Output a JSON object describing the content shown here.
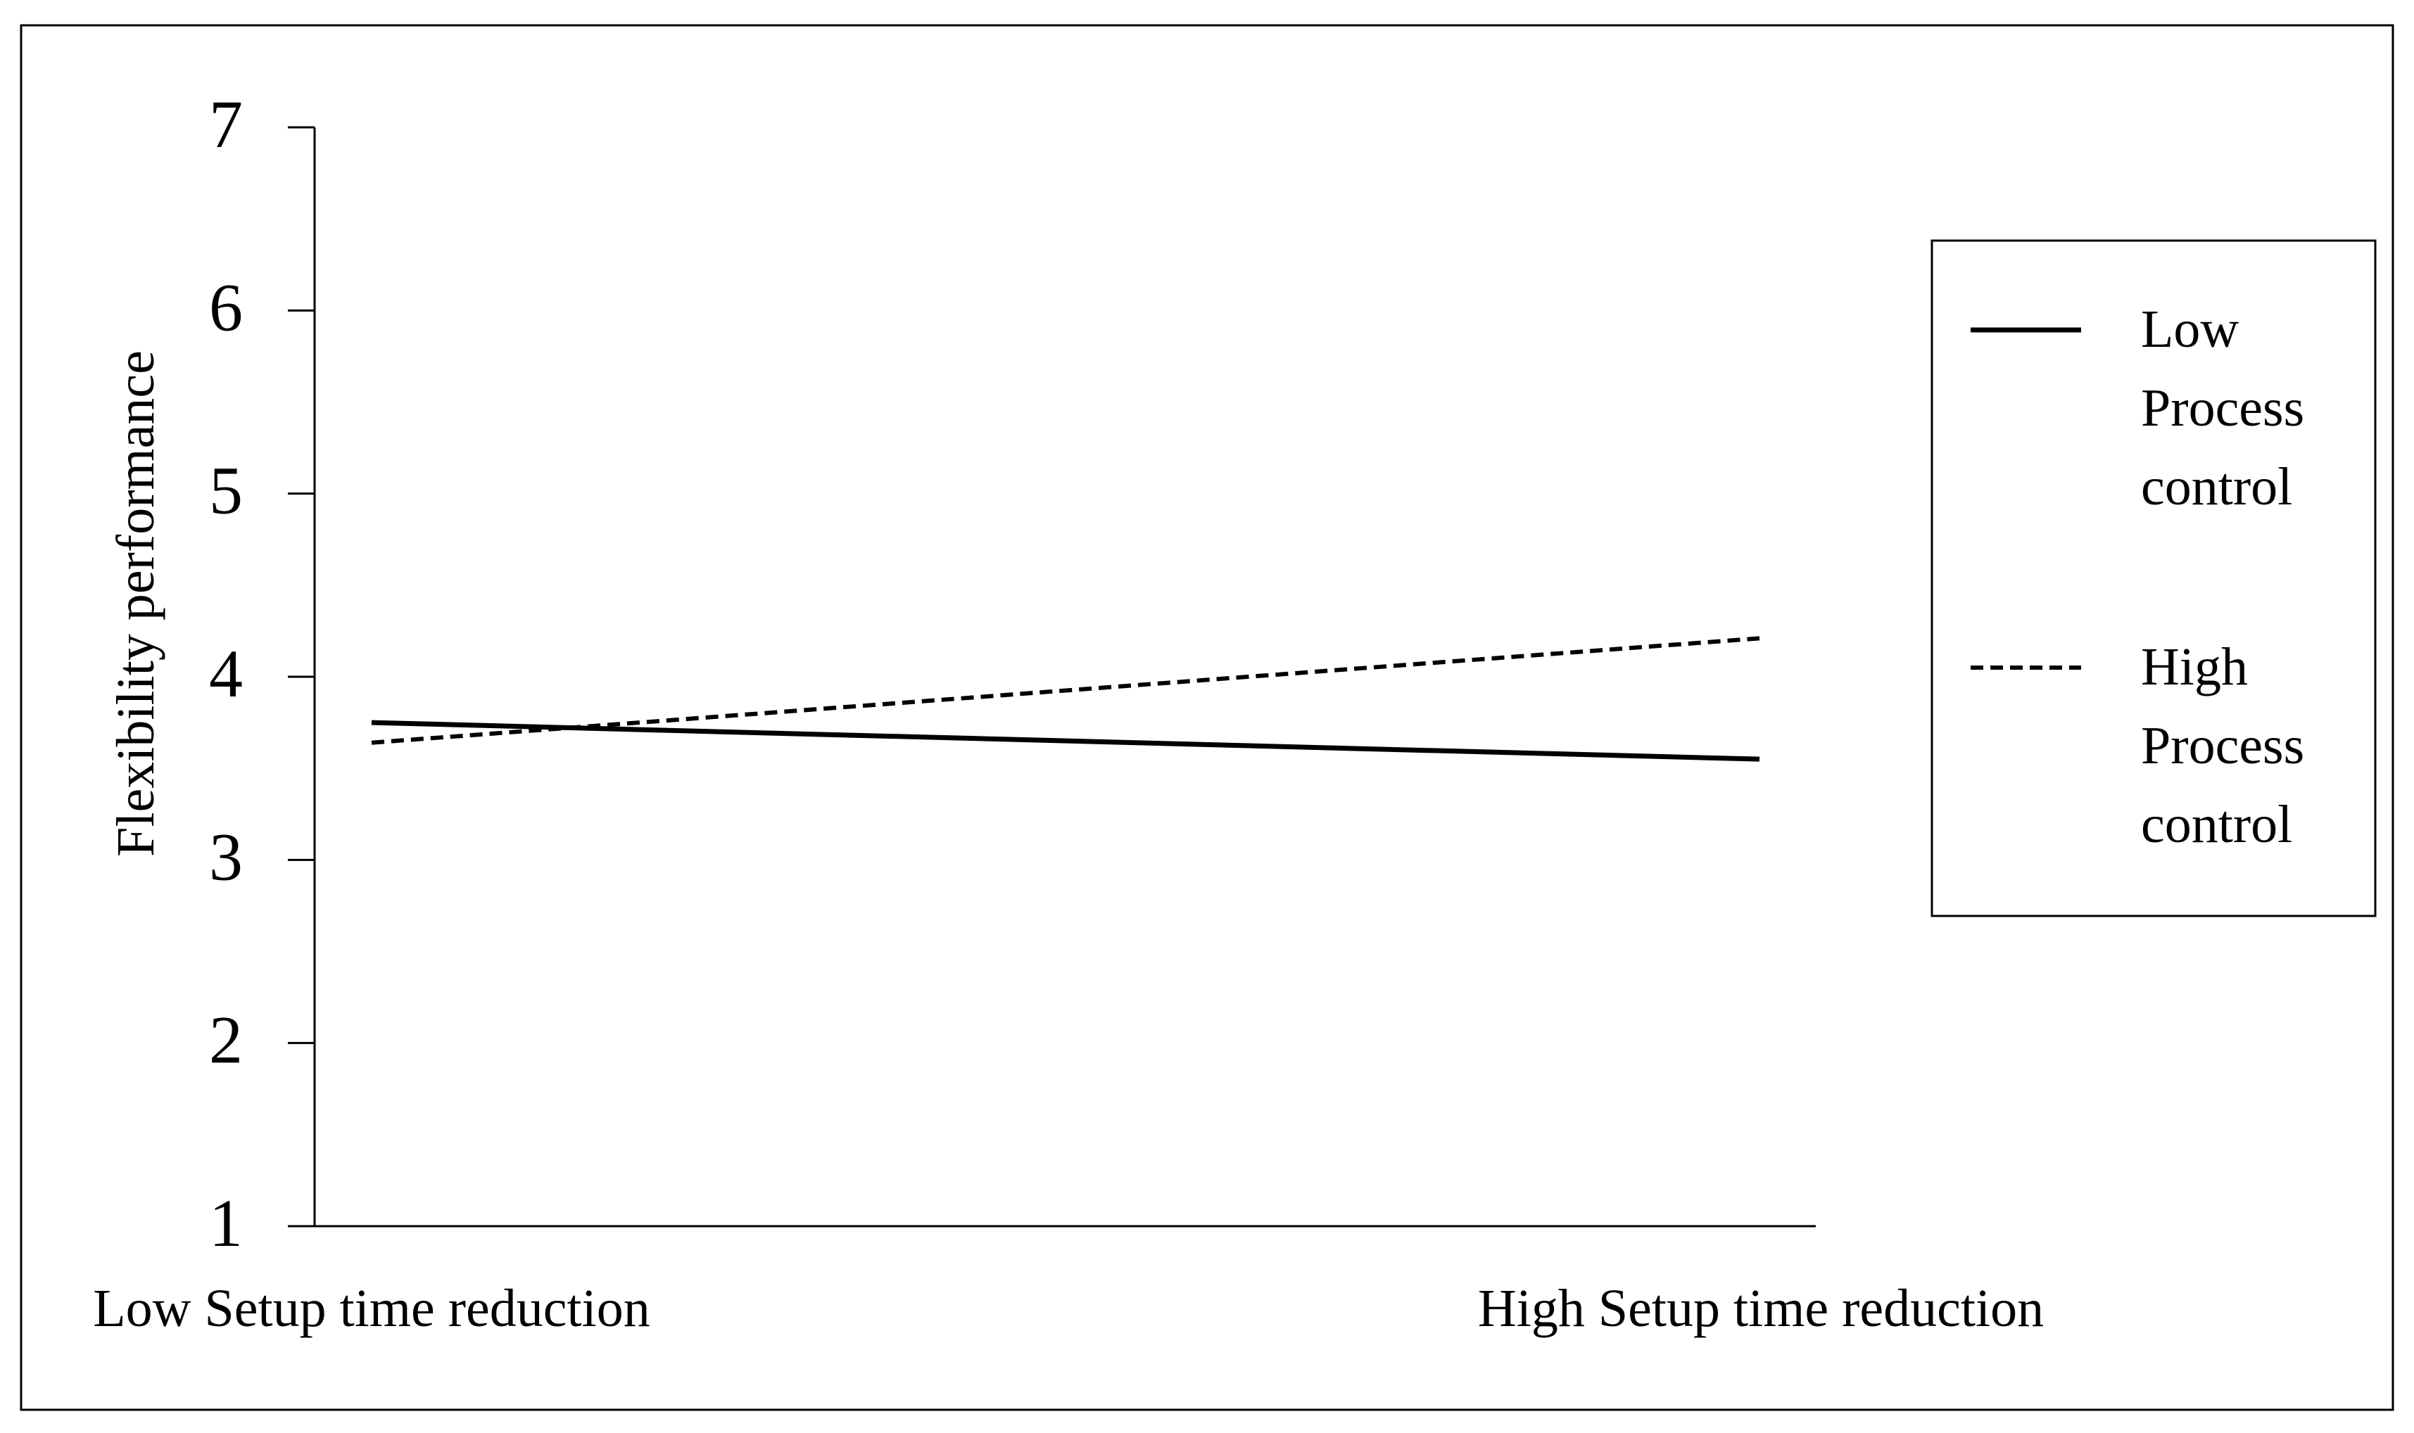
{
  "chart_data": {
    "type": "line",
    "title": "",
    "xlabel": "",
    "ylabel": "Flexibility performance",
    "categories": [
      "Low Setup time reduction",
      "High Setup time reduction"
    ],
    "ylim": [
      1,
      7
    ],
    "yticks": [
      "1",
      "2",
      "3",
      "4",
      "5",
      "6",
      "7"
    ],
    "grid": false,
    "legend_position": "right",
    "series": [
      {
        "name": "Low Process control",
        "name_lines": [
          "Low",
          "Process",
          "control"
        ],
        "values": [
          3.75,
          3.55
        ],
        "line_style": "solid",
        "color": "#000000"
      },
      {
        "name": "High Process control",
        "name_lines": [
          "High",
          "Process",
          "control"
        ],
        "values": [
          3.64,
          4.21
        ],
        "line_style": "dashed",
        "color": "#000000"
      }
    ]
  }
}
